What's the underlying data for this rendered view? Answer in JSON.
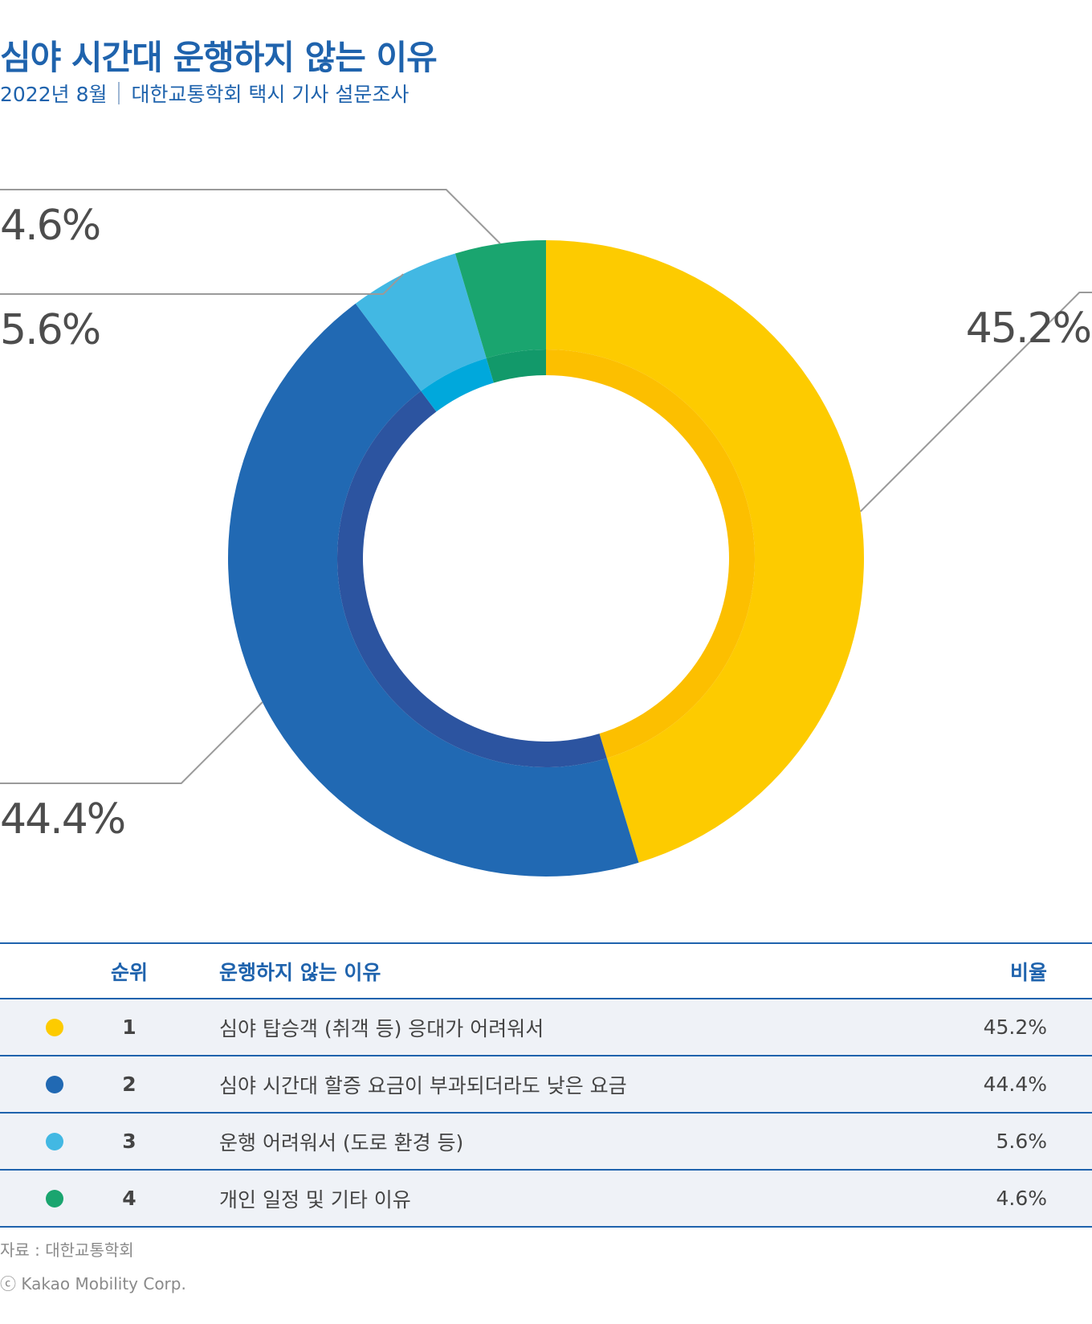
{
  "header": {
    "title": "심야 시간대 운행하지 않는 이유",
    "subtitle_date": "2022년 8월",
    "subtitle_source": "대한교통학회 택시 기사 설문조사"
  },
  "chart_data": {
    "type": "pie",
    "variant": "donut",
    "categories": [
      "심야 탑승객 (취객 등) 응대가 어려워서",
      "심야 시간대 할증 요금이 부과되더라도 낮은 요금",
      "운행 어려워서 (도로 환경 등)",
      "개인 일정 및 기타 이유"
    ],
    "values": [
      45.2,
      44.4,
      5.6,
      4.6
    ],
    "labels": [
      "45.2%",
      "44.4%",
      "5.6%",
      "4.6%"
    ],
    "colors": [
      "#fdcb00",
      "#2169b3",
      "#42b8e3",
      "#1aa56f"
    ],
    "inner_colors": [
      "#fcbf00",
      "#2c54a0",
      "#00a8dc",
      "#12996a"
    ]
  },
  "table": {
    "headers": {
      "rank": "순위",
      "reason": "운행하지 않는 이유",
      "ratio": "비율"
    },
    "rows": [
      {
        "rank": "1",
        "reason": "심야 탑승객 (취객 등) 응대가 어려워서",
        "ratio": "45.2%",
        "color": "#fdcb00"
      },
      {
        "rank": "2",
        "reason": "심야 시간대 할증 요금이 부과되더라도 낮은 요금",
        "ratio": "44.4%",
        "color": "#2169b3"
      },
      {
        "rank": "3",
        "reason": "운행 어려워서 (도로 환경 등)",
        "ratio": "5.6%",
        "color": "#42b8e3"
      },
      {
        "rank": "4",
        "reason": "개인 일정 및 기타 이유",
        "ratio": "4.6%",
        "color": "#1aa56f"
      }
    ]
  },
  "footer": {
    "source": "자료 : 대한교통학회",
    "copyright": "ⓒ Kakao Mobility Corp."
  }
}
